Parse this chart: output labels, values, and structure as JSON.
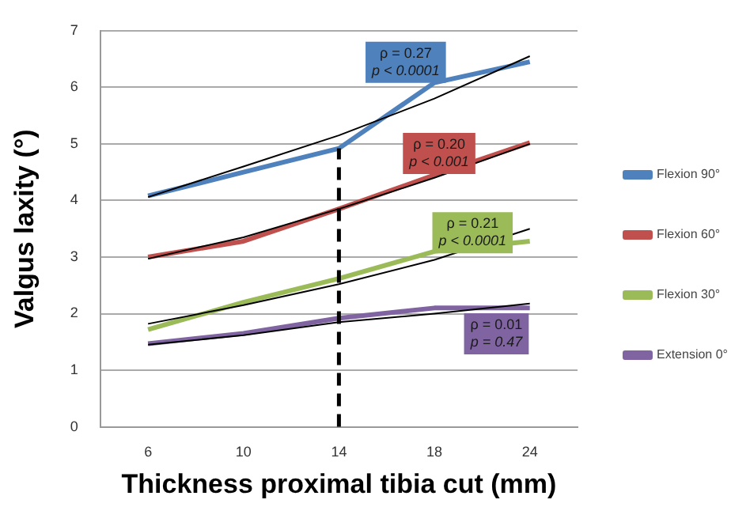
{
  "chart_data": {
    "type": "line",
    "xlabel": "Thickness proximal tibia cut (mm)",
    "ylabel": "Valgus laxity (°)",
    "categories": [
      "6",
      "10",
      "14",
      "18",
      "24"
    ],
    "ylim": [
      0,
      7
    ],
    "yticks": [
      0,
      1,
      2,
      3,
      4,
      5,
      6,
      7
    ],
    "grid": "y",
    "legend": "right",
    "marker": "none",
    "line_style": "solid",
    "series": [
      {
        "name": "Flexion 90°",
        "color": "#4f81bd",
        "values": [
          4.08,
          4.5,
          4.92,
          6.08,
          6.45
        ]
      },
      {
        "name": "Flexion 60°",
        "color": "#c0504d",
        "values": [
          3.0,
          3.28,
          3.85,
          4.45,
          5.02
        ]
      },
      {
        "name": "Flexion 30°",
        "color": "#9bbb59",
        "values": [
          1.72,
          2.2,
          2.62,
          3.1,
          3.28
        ]
      },
      {
        "name": "Extension 0°",
        "color": "#8064a2",
        "values": [
          1.47,
          1.65,
          1.92,
          2.1,
          2.1
        ]
      },
      {
        "type": "line",
        "color": "#000000",
        "values": [
          4.06,
          4.6,
          5.15,
          5.8,
          6.55
        ]
      },
      {
        "type": "line",
        "color": "#000000",
        "values": [
          2.97,
          3.35,
          3.85,
          4.4,
          5.0
        ]
      },
      {
        "type": "line",
        "color": "#000000",
        "values": [
          1.82,
          2.15,
          2.52,
          2.95,
          3.5
        ]
      },
      {
        "type": "line",
        "color": "#000000",
        "values": [
          1.45,
          1.62,
          1.85,
          2.0,
          2.18
        ]
      }
    ],
    "ref_lines": [
      {
        "axis": "x",
        "value": "14",
        "color": "#000000",
        "line_style": "dashed"
      }
    ],
    "annotations": [
      "ρ = 0.27\np < 0.0001",
      "ρ = 0.20\np < 0.001",
      "ρ = 0.21\np < 0.0001",
      "ρ = 0.01\np = 0.47"
    ]
  }
}
